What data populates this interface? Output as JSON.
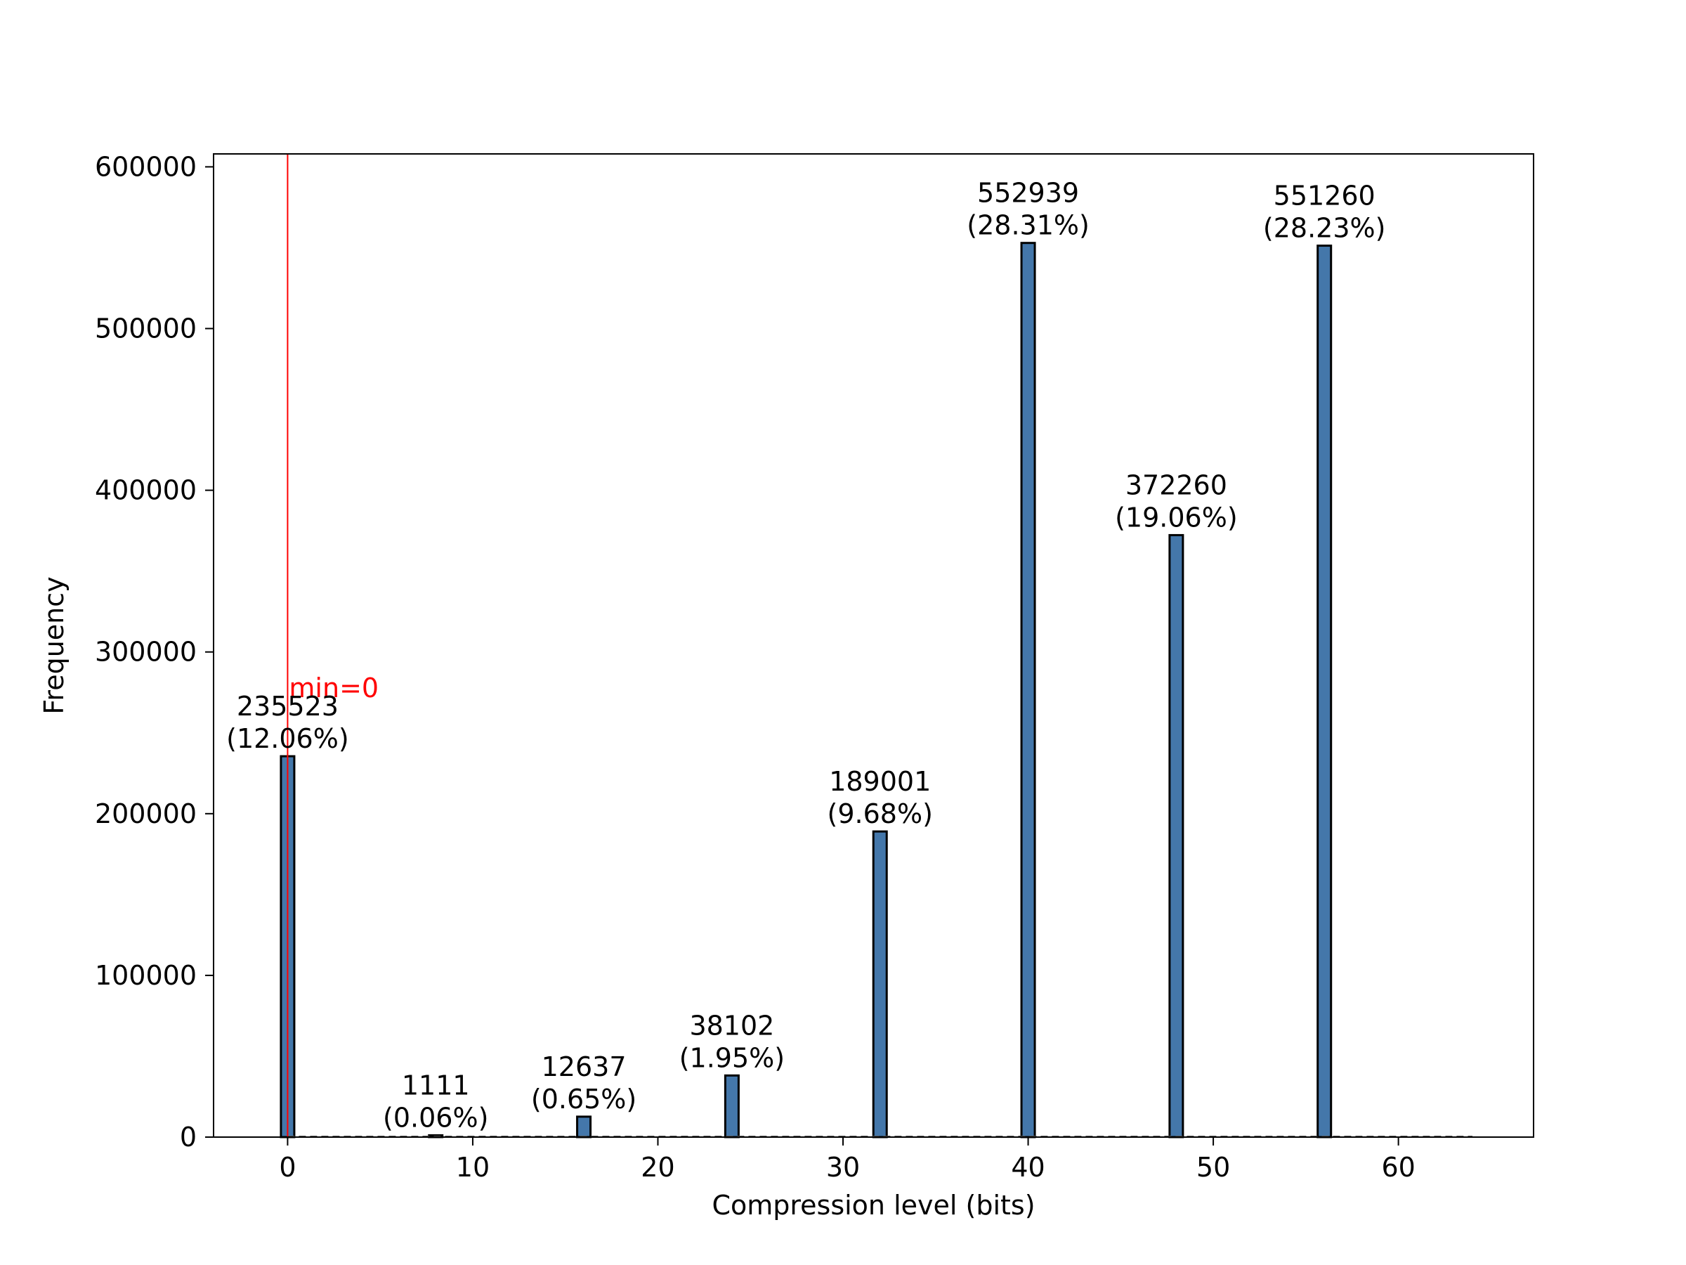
{
  "chart_data": {
    "type": "bar",
    "xlabel": "Compression level (bits)",
    "ylabel": "Frequency",
    "xlim": [
      -4,
      67.3
    ],
    "ylim": [
      0,
      608000
    ],
    "x_ticks": [
      0,
      10,
      20,
      30,
      40,
      50,
      60
    ],
    "y_ticks": [
      0,
      100000,
      200000,
      300000,
      400000,
      500000,
      600000
    ],
    "grid": false,
    "bar_color": "#4477aa",
    "bar_edge_color": "#000000",
    "bars": [
      {
        "x": 0,
        "value": 235523,
        "count_label": "235523",
        "pct_label": "(12.06%)"
      },
      {
        "x": 8,
        "value": 1111,
        "count_label": "1111",
        "pct_label": "(0.06%)"
      },
      {
        "x": 16,
        "value": 12637,
        "count_label": "12637",
        "pct_label": "(0.65%)"
      },
      {
        "x": 24,
        "value": 38102,
        "count_label": "38102",
        "pct_label": "(1.95%)"
      },
      {
        "x": 32,
        "value": 189001,
        "count_label": "189001",
        "pct_label": "(9.68%)"
      },
      {
        "x": 40,
        "value": 552939,
        "count_label": "552939",
        "pct_label": "(28.31%)"
      },
      {
        "x": 48,
        "value": 372260,
        "count_label": "372260",
        "pct_label": "(19.06%)"
      },
      {
        "x": 56,
        "value": 551260,
        "count_label": "551260",
        "pct_label": "(28.23%)"
      }
    ],
    "baseline": {
      "x_start": 0,
      "x_end": 64,
      "style": "dashed"
    },
    "annotation": {
      "x": 0,
      "text": "min=0",
      "color": "#ff0000"
    }
  }
}
